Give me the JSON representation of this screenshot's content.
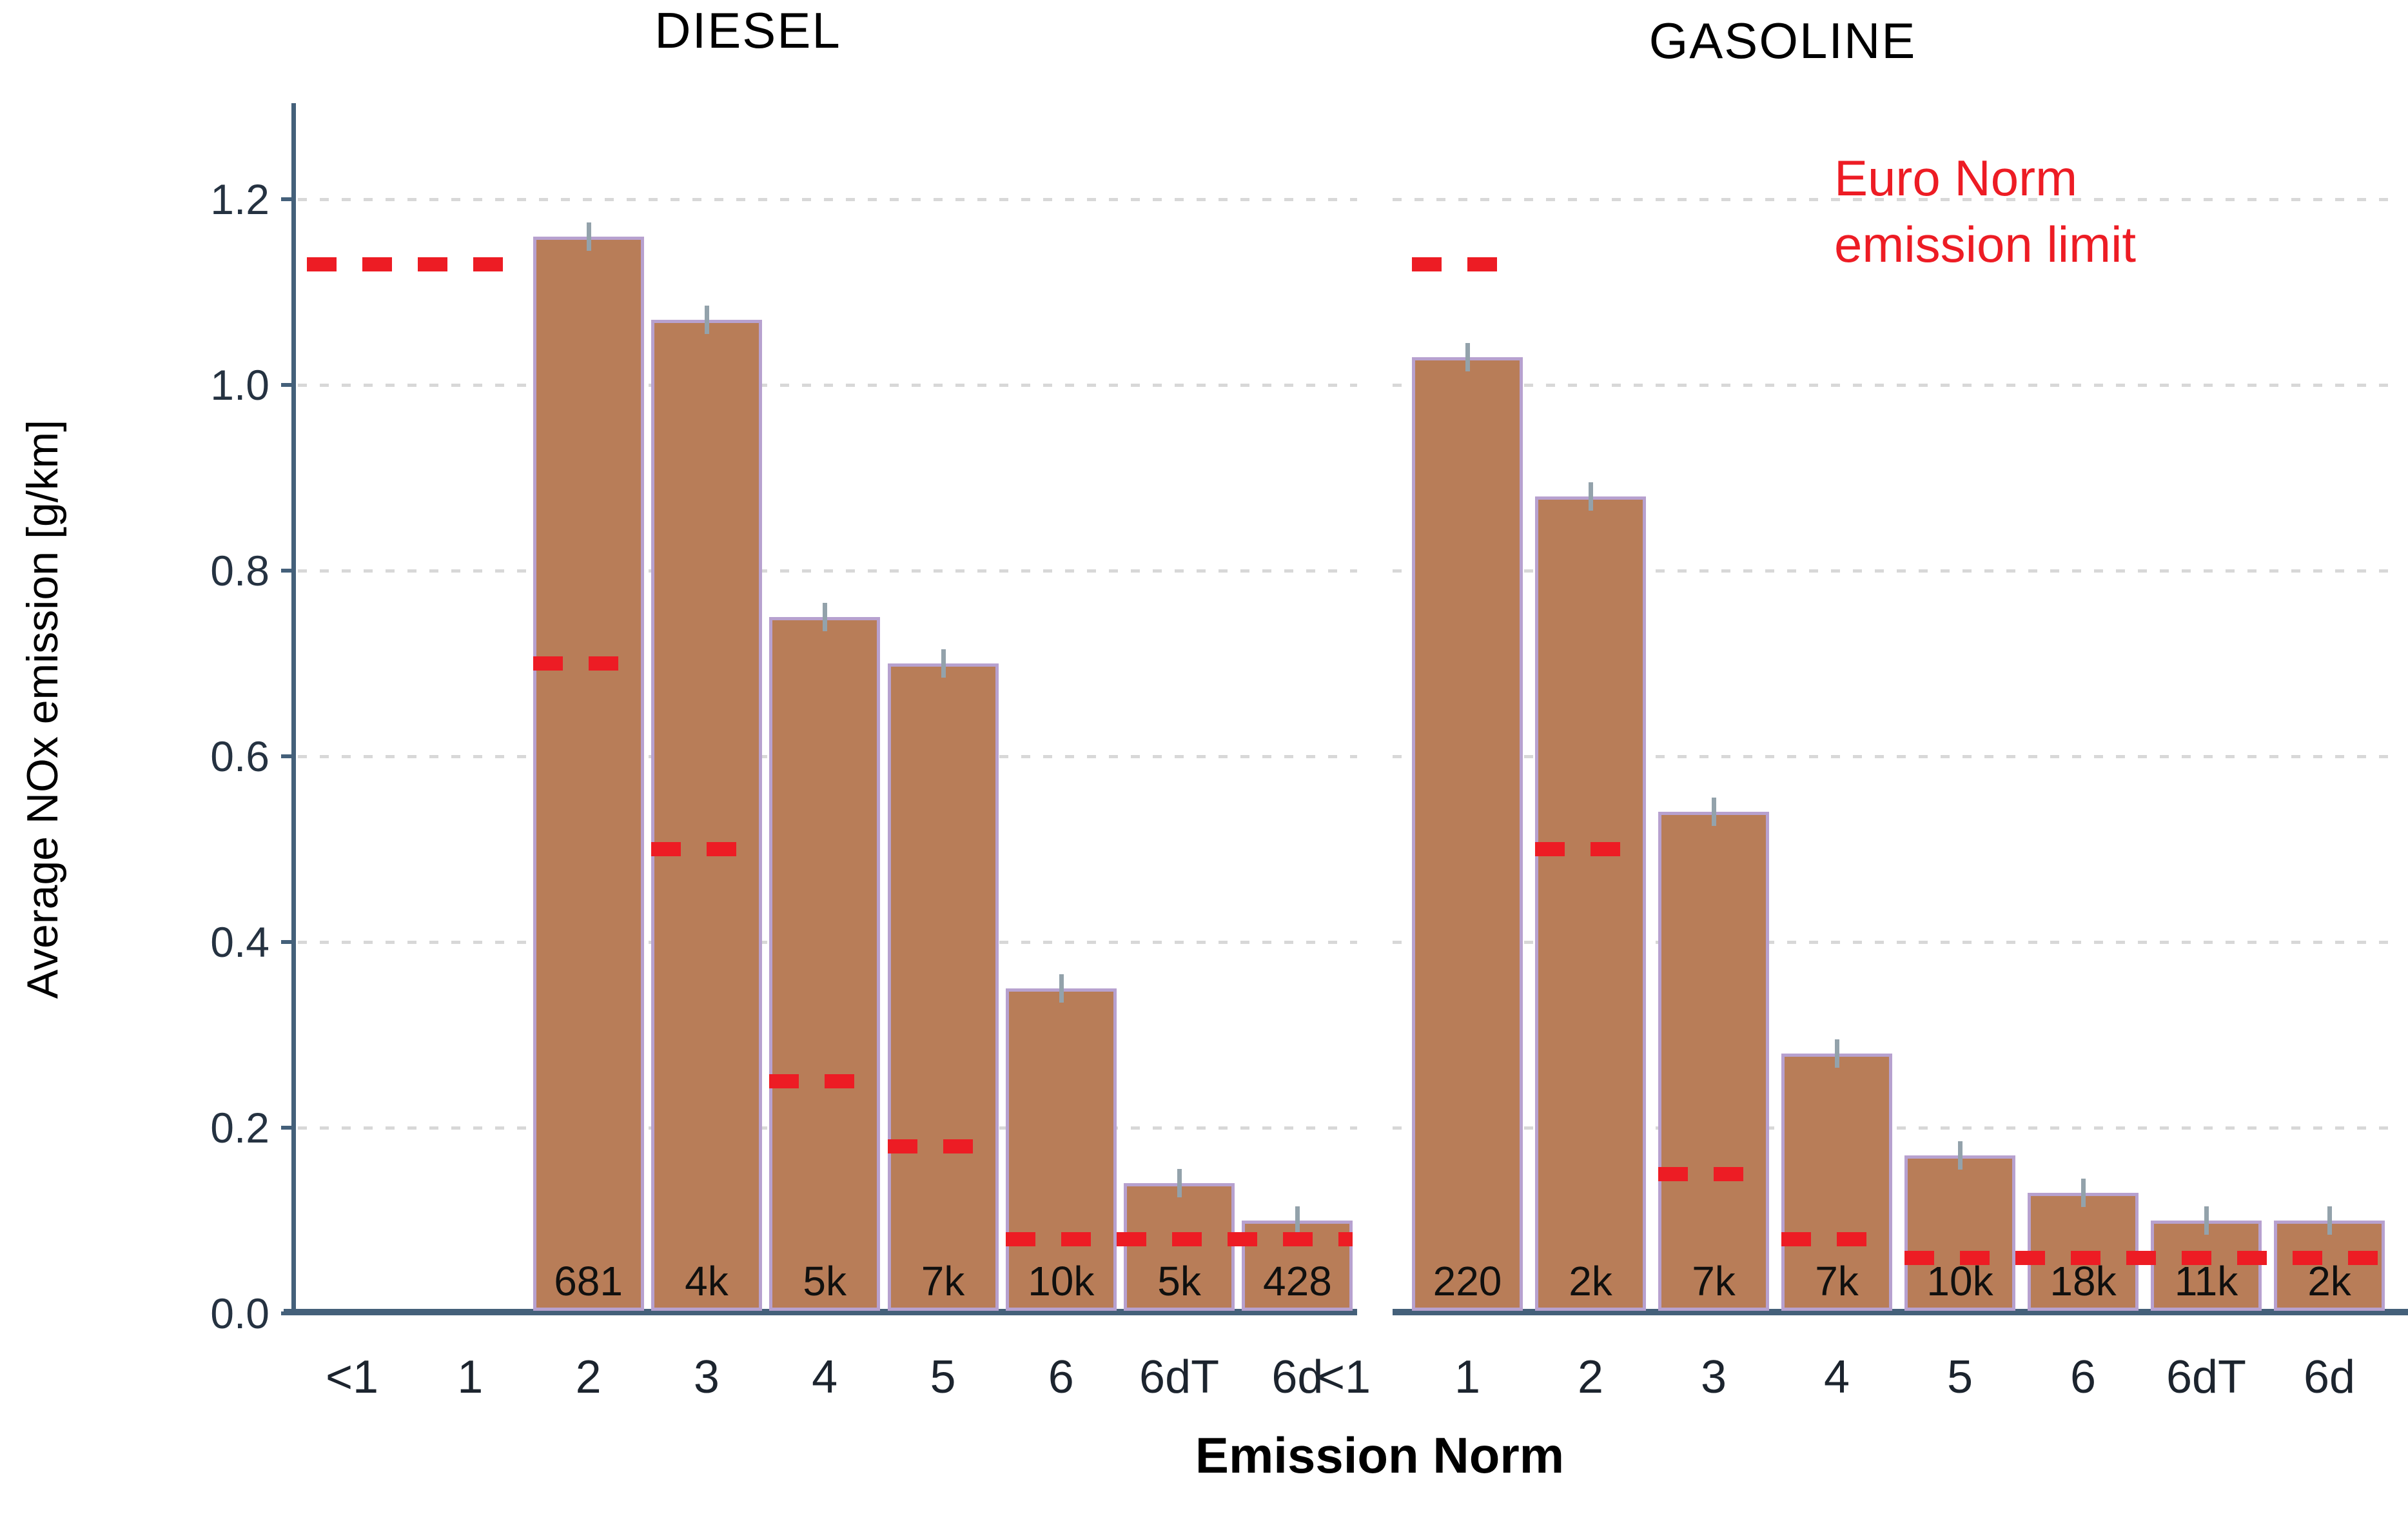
{
  "figure": {
    "x_axis_label": "Emission Norm",
    "y_axis_label": "Average NOx emission [g/km]"
  },
  "legend": {
    "line1": "Euro Norm",
    "line2": "emission limit"
  },
  "colors": {
    "bar_fill": "#b87d58",
    "bar_border": "#b7a1cf",
    "limit_red": "#ed1c24",
    "axis": "#44607a",
    "gridline": "#d8d8d8",
    "text": "#000000"
  },
  "chart_data": [
    {
      "type": "bar",
      "title": "DIESEL",
      "categories": [
        "<1",
        "1",
        "2",
        "3",
        "4",
        "5",
        "6",
        "6dT",
        "6d"
      ],
      "values": [
        null,
        null,
        1.16,
        1.07,
        0.75,
        0.7,
        0.35,
        0.14,
        0.1
      ],
      "counts": [
        "",
        "",
        "681",
        "4k",
        "5k",
        "7k",
        "10k",
        "5k",
        "428"
      ],
      "ylabel": "Average NOx emission [g/km]",
      "xlabel": "Emission Norm",
      "ylim": [
        0,
        1.3
      ],
      "y_ticks": [
        "0.0",
        "0.2",
        "0.4",
        "0.6",
        "0.8",
        "1.0",
        "1.2"
      ],
      "grid": "dotted horizontal",
      "limit_segments": [
        {
          "value": 1.13,
          "from": 0,
          "to": 1,
          "span": "slots"
        },
        {
          "value": 0.7,
          "from": 2,
          "to": 2,
          "span": "bars"
        },
        {
          "value": 0.5,
          "from": 3,
          "to": 3,
          "span": "bars"
        },
        {
          "value": 0.25,
          "from": 4,
          "to": 4,
          "span": "bars"
        },
        {
          "value": 0.18,
          "from": 5,
          "to": 5,
          "span": "bars"
        },
        {
          "value": 0.08,
          "from": 6,
          "to": 8,
          "span": "bars"
        }
      ]
    },
    {
      "type": "bar",
      "title": "GASOLINE",
      "categories": [
        "<1",
        "1",
        "2",
        "3",
        "4",
        "5",
        "6",
        "6dT",
        "6d"
      ],
      "values": [
        null,
        1.03,
        0.88,
        0.54,
        0.28,
        0.17,
        0.13,
        0.1,
        0.1
      ],
      "counts": [
        "",
        "220",
        "2k",
        "7k",
        "7k",
        "10k",
        "18k",
        "11k",
        "2k"
      ],
      "ylabel": "Average NOx emission [g/km]",
      "xlabel": "Emission Norm",
      "ylim": [
        0,
        1.3
      ],
      "y_ticks": [
        "0.0",
        "0.2",
        "0.4",
        "0.6",
        "0.8",
        "1.0",
        "1.2"
      ],
      "grid": "dotted horizontal",
      "limit_segments": [
        {
          "value": 1.13,
          "from": 1,
          "to": 1,
          "span": "bars"
        },
        {
          "value": 0.5,
          "from": 2,
          "to": 2,
          "span": "bars"
        },
        {
          "value": 0.15,
          "from": 3,
          "to": 3,
          "span": "bars"
        },
        {
          "value": 0.08,
          "from": 4,
          "to": 4,
          "span": "bars"
        },
        {
          "value": 0.06,
          "from": 5,
          "to": 8,
          "span": "bars"
        }
      ]
    }
  ]
}
